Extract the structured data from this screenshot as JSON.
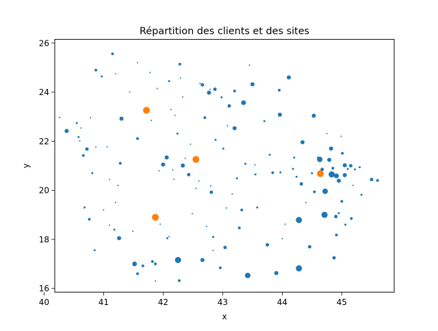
{
  "chart_data": {
    "type": "scatter",
    "title": "Répartition des clients et des sites",
    "xlabel": "x",
    "ylabel": "y",
    "xlim": [
      40.18,
      45.88
    ],
    "ylim": [
      15.85,
      26.15
    ],
    "xticks": [
      40,
      41,
      42,
      43,
      44,
      45
    ],
    "yticks": [
      16,
      18,
      20,
      22,
      24,
      26
    ],
    "xtick_labels": [
      "40",
      "41",
      "42",
      "43",
      "44",
      "45"
    ],
    "ytick_labels": [
      "16",
      "18",
      "20",
      "22",
      "24",
      "26"
    ],
    "grid": false,
    "legend": "none",
    "series": [
      {
        "color": "#1f77b4",
        "points": [
          [
            40.26,
            22.97,
            1
          ],
          [
            40.38,
            22.42,
            3
          ],
          [
            40.55,
            22.74,
            1.5
          ],
          [
            40.58,
            22.17,
            1.5
          ],
          [
            40.62,
            22.54,
            1
          ],
          [
            40.66,
            21.42,
            2
          ],
          [
            40.72,
            21.68,
            2.5
          ],
          [
            40.76,
            18.82,
            2
          ],
          [
            40.78,
            22.96,
            1
          ],
          [
            40.81,
            20.7,
            1.5
          ],
          [
            40.85,
            17.56,
            1.5
          ],
          [
            40.6,
            22.01,
            1
          ],
          [
            40.68,
            19.3,
            1.5
          ],
          [
            40.87,
            21.76,
            1
          ],
          [
            40.87,
            24.9,
            2
          ],
          [
            40.97,
            24.64,
            1.5
          ],
          [
            41.0,
            19.2,
            1
          ],
          [
            41.06,
            21.77,
            1
          ],
          [
            41.1,
            18.58,
            1
          ],
          [
            41.1,
            20.44,
            1
          ],
          [
            41.15,
            25.56,
            2
          ],
          [
            41.18,
            18.4,
            1.5
          ],
          [
            41.2,
            24.75,
            1
          ],
          [
            41.26,
            18.05,
            3
          ],
          [
            41.28,
            21.1,
            2
          ],
          [
            41.3,
            22.92,
            3
          ],
          [
            41.2,
            19.5,
            1
          ],
          [
            41.24,
            20.2,
            1
          ],
          [
            41.44,
            24.0,
            1
          ],
          [
            41.49,
            18.33,
            1
          ],
          [
            41.52,
            17.0,
            3.5
          ],
          [
            41.57,
            16.6,
            2
          ],
          [
            41.57,
            22.11,
            2
          ],
          [
            41.66,
            16.92,
            2
          ],
          [
            41.72,
            23.27,
            1.5
          ],
          [
            41.8,
            22.85,
            1
          ],
          [
            41.82,
            17.1,
            2
          ],
          [
            41.87,
            17.0,
            2
          ],
          [
            41.9,
            24.15,
            1
          ],
          [
            41.95,
            18.62,
            1
          ],
          [
            41.93,
            20.8,
            1
          ],
          [
            41.78,
            24.8,
            1
          ],
          [
            41.57,
            25.2,
            1
          ],
          [
            41.87,
            16.3,
            1
          ],
          [
            42.0,
            21.05,
            3
          ],
          [
            42.06,
            21.34,
            3
          ],
          [
            42.07,
            18.05,
            1.5
          ],
          [
            42.1,
            18.12,
            1
          ],
          [
            42.1,
            24.45,
            1.5
          ],
          [
            42.13,
            23.29,
            1
          ],
          [
            42.16,
            20.83,
            1
          ],
          [
            42.18,
            20.45,
            1
          ],
          [
            42.2,
            23.06,
            1
          ],
          [
            42.24,
            22.31,
            1.5
          ],
          [
            42.25,
            17.16,
            4.5
          ],
          [
            42.27,
            16.32,
            2
          ],
          [
            42.28,
            25.14,
            2
          ],
          [
            42.29,
            24.58,
            1
          ],
          [
            42.33,
            23.8,
            1
          ],
          [
            42.33,
            21.01,
            3
          ],
          [
            42.37,
            21.3,
            1
          ],
          [
            42.43,
            20.64,
            2.5
          ],
          [
            42.46,
            21.88,
            1
          ],
          [
            42.49,
            19.05,
            1
          ],
          [
            42.55,
            20.08,
            1
          ],
          [
            42.6,
            20.38,
            1
          ],
          [
            42.62,
            24.35,
            1
          ],
          [
            42.66,
            24.3,
            2.5
          ],
          [
            42.66,
            17.16,
            3
          ],
          [
            42.7,
            22.96,
            2
          ],
          [
            42.73,
            18.53,
            1
          ],
          [
            42.77,
            23.98,
            3
          ],
          [
            42.79,
            24.12,
            1
          ],
          [
            42.8,
            20.18,
            1
          ],
          [
            42.81,
            19.92,
            2.5
          ],
          [
            42.84,
            17.55,
            1
          ],
          [
            42.84,
            18.1,
            1.5
          ],
          [
            42.87,
            24.12,
            2.5
          ],
          [
            42.88,
            22.06,
            1.5
          ],
          [
            42.96,
            16.84,
            2
          ],
          [
            42.98,
            23.79,
            1.5
          ],
          [
            43.01,
            21.7,
            1.5
          ],
          [
            43.04,
            17.67,
            2.5
          ],
          [
            43.06,
            19.28,
            1
          ],
          [
            43.08,
            22.63,
            1
          ],
          [
            43.11,
            23.44,
            2.5
          ],
          [
            43.16,
            19.85,
            1
          ],
          [
            43.2,
            22.53,
            3
          ],
          [
            43.2,
            24.05,
            2
          ],
          [
            43.24,
            20.49,
            1.5
          ],
          [
            43.28,
            18.47,
            2
          ],
          [
            43.32,
            19.2,
            2
          ],
          [
            43.35,
            23.57,
            3.5
          ],
          [
            43.38,
            21.08,
            1.5
          ],
          [
            43.42,
            16.53,
            4
          ],
          [
            43.45,
            25.1,
            1
          ],
          [
            43.5,
            24.32,
            3
          ],
          [
            43.54,
            21.04,
            1
          ],
          [
            43.55,
            20.65,
            1.5
          ],
          [
            43.58,
            19.3,
            1.5
          ],
          [
            43.7,
            22.82,
            1.5
          ],
          [
            43.75,
            17.78,
            2.5
          ],
          [
            43.79,
            21.45,
            1.5
          ],
          [
            43.84,
            20.72,
            2
          ],
          [
            43.9,
            16.63,
            3
          ],
          [
            43.95,
            24.08,
            2
          ],
          [
            43.96,
            23.08,
            3
          ],
          [
            43.97,
            20.73,
            1.5
          ],
          [
            44.0,
            18.03,
            1
          ],
          [
            44.05,
            18.62,
            1
          ],
          [
            44.11,
            24.6,
            3
          ],
          [
            44.18,
            20.87,
            1.5
          ],
          [
            44.2,
            21.33,
            1.5
          ],
          [
            44.24,
            20.55,
            1.5
          ],
          [
            44.28,
            16.82,
            4.5
          ],
          [
            44.28,
            18.79,
            4.5
          ],
          [
            44.32,
            20.26,
            2.5
          ],
          [
            44.34,
            21.96,
            3
          ],
          [
            44.4,
            19.5,
            1
          ],
          [
            44.46,
            17.7,
            2.5
          ],
          [
            44.5,
            20.7,
            1.5
          ],
          [
            44.53,
            23.04,
            3
          ],
          [
            44.54,
            19.94,
            2
          ],
          [
            44.6,
            21.33,
            1.5
          ],
          [
            44.63,
            21.26,
            4
          ],
          [
            44.67,
            20.85,
            2.5
          ],
          [
            44.71,
            19.0,
            4.5
          ],
          [
            44.72,
            19.96,
            4
          ],
          [
            44.75,
            22.31,
            1
          ],
          [
            44.79,
            21.24,
            3
          ],
          [
            44.82,
            21.7,
            3
          ],
          [
            44.83,
            20.65,
            4.5
          ],
          [
            44.85,
            20.9,
            2
          ],
          [
            44.87,
            17.25,
            2.5
          ],
          [
            44.9,
            18.93,
            2.5
          ],
          [
            44.91,
            20.59,
            3.5
          ],
          [
            44.91,
            18.18,
            2
          ],
          [
            44.95,
            19.07,
            1.5
          ],
          [
            44.95,
            20.39,
            3
          ],
          [
            44.99,
            22.2,
            1
          ],
          [
            45.0,
            19.55,
            2
          ],
          [
            45.01,
            21.51,
            2
          ],
          [
            45.05,
            21.02,
            3
          ],
          [
            45.05,
            20.62,
            3
          ],
          [
            45.1,
            20.87,
            1.5
          ],
          [
            45.15,
            21.0,
            2.5
          ],
          [
            45.16,
            18.85,
            2
          ],
          [
            45.19,
            20.2,
            1
          ],
          [
            45.22,
            20.85,
            1.5
          ],
          [
            45.3,
            20.94,
            1.5
          ],
          [
            45.33,
            19.82,
            1.5
          ],
          [
            45.5,
            20.44,
            2.5
          ],
          [
            45.6,
            20.4,
            2
          ],
          [
            45.06,
            18.6,
            1.5
          ]
        ]
      },
      {
        "color": "#ff7f0e",
        "points": [
          [
            41.72,
            23.26,
            5
          ],
          [
            41.87,
            18.9,
            5
          ],
          [
            42.55,
            21.26,
            5
          ],
          [
            44.64,
            20.68,
            5
          ]
        ]
      }
    ]
  }
}
